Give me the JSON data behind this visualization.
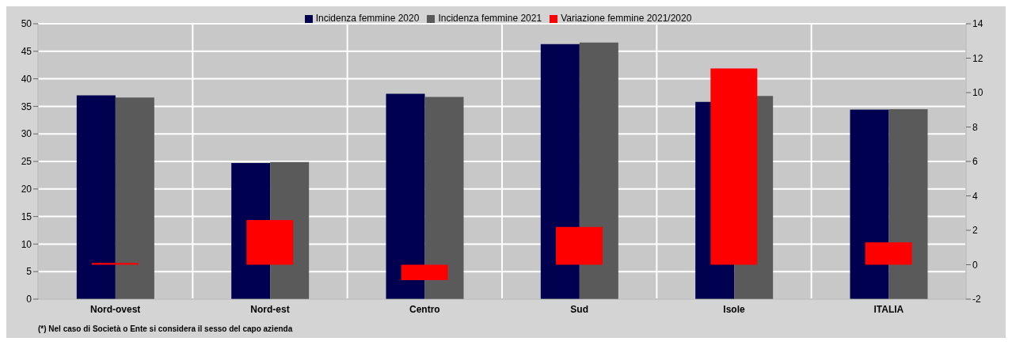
{
  "chart_data": {
    "type": "bar",
    "categories": [
      "Nord-ovest",
      "Nord-est",
      "Centro",
      "Sud",
      "Isole",
      "ITALIA"
    ],
    "series": [
      {
        "name": "Incidenza femmine 2020",
        "color": "#000050",
        "values": [
          37,
          24.7,
          37.3,
          46.3,
          35.8,
          34.4
        ]
      },
      {
        "name": "Incidenza femmine 2021",
        "color": "#5a5a5a",
        "values": [
          36.6,
          24.9,
          36.7,
          46.6,
          36.9,
          34.5
        ]
      },
      {
        "name": "Variazione femmine 2021/2020",
        "color": "#ff0000",
        "axis": "y2",
        "values": [
          0.1,
          2.6,
          -0.9,
          2.2,
          11.4,
          1.3
        ]
      }
    ],
    "ylim": [
      0,
      50
    ],
    "yticks": [
      0,
      5,
      10,
      15,
      20,
      25,
      30,
      35,
      40,
      45,
      50
    ],
    "y2lim": [
      -2,
      14
    ],
    "y2ticks": [
      -2,
      0,
      2,
      4,
      6,
      8,
      10,
      12,
      14
    ],
    "grid": true,
    "legend": "top",
    "annotations": [
      "(*) Nel caso di Società o Ente si considera il sesso del capo azienda"
    ]
  }
}
